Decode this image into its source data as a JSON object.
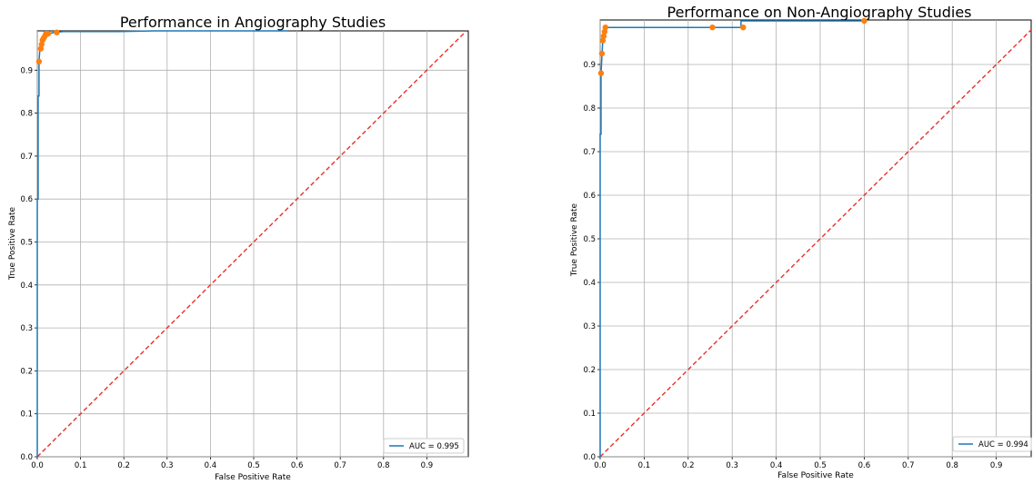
{
  "chart_data": [
    {
      "type": "line",
      "title": "Performance in Angiography Studies",
      "xlabel": "False Positive Rate",
      "ylabel": "True Positive Rate",
      "xlim": [
        0.0,
        1.0
      ],
      "ylim": [
        0.0,
        1.0
      ],
      "xticks": [
        "0.0",
        "0.1",
        "0.2",
        "0.3",
        "0.4",
        "0.5",
        "0.6",
        "0.7",
        "0.8",
        "0.9"
      ],
      "yticks": [
        "0.0",
        "0.1",
        "0.2",
        "0.3",
        "0.4",
        "0.5",
        "0.6",
        "0.7",
        "0.8",
        "0.9"
      ],
      "grid": true,
      "legend_position": "bottom-right",
      "colors": {
        "roc": "#1f77b4",
        "points": "#ff7f0e",
        "diagonal": "#e8302a"
      },
      "series": [
        {
          "name": "AUC = 0.995",
          "x": [
            0.0,
            0.0,
            0.002,
            0.002,
            0.004,
            0.004,
            0.006,
            0.008,
            0.01,
            0.012,
            0.015,
            0.02,
            0.025,
            0.04,
            0.06,
            0.19,
            0.27,
            0.58
          ],
          "y": [
            0.0,
            0.6,
            0.6,
            0.84,
            0.84,
            0.92,
            0.95,
            0.96,
            0.97,
            0.975,
            0.98,
            0.985,
            0.985,
            0.988,
            0.99,
            0.99,
            0.995,
            1.0
          ]
        }
      ],
      "threshold_points": {
        "x": [
          0.004,
          0.008,
          0.01,
          0.012,
          0.015,
          0.018,
          0.02,
          0.025,
          0.045
        ],
        "y": [
          0.92,
          0.95,
          0.96,
          0.97,
          0.975,
          0.98,
          0.985,
          0.985,
          0.988
        ]
      },
      "diagonal": {
        "x": [
          0.0,
          1.0
        ],
        "y": [
          0.0,
          1.0
        ]
      }
    },
    {
      "type": "line",
      "title": "Performance on Non-Angiography Studies",
      "xlabel": "False Positive Rate",
      "ylabel": "True Positive Rate",
      "xlim": [
        0.0,
        1.0
      ],
      "ylim": [
        0.0,
        1.0
      ],
      "xticks": [
        "0.0",
        "0.1",
        "0.2",
        "0.3",
        "0.4",
        "0.5",
        "0.6",
        "0.7",
        "0.8",
        "0.9"
      ],
      "yticks": [
        "0.0",
        "0.1",
        "0.2",
        "0.3",
        "0.4",
        "0.5",
        "0.6",
        "0.7",
        "0.8",
        "0.9"
      ],
      "grid": true,
      "legend_position": "bottom-right",
      "colors": {
        "roc": "#1f77b4",
        "points": "#ff7f0e",
        "diagonal": "#e8302a"
      },
      "series": [
        {
          "name": "AUC = 0.994",
          "x": [
            0.0,
            0.0,
            0.002,
            0.002,
            0.004,
            0.006,
            0.008,
            0.01,
            0.012,
            0.26,
            0.32,
            0.32,
            0.6
          ],
          "y": [
            0.0,
            0.74,
            0.74,
            0.88,
            0.92,
            0.955,
            0.965,
            0.975,
            0.985,
            0.985,
            0.985,
            1.0,
            1.0
          ]
        }
      ],
      "threshold_points": {
        "x": [
          0.002,
          0.004,
          0.006,
          0.008,
          0.01,
          0.012,
          0.255,
          0.325,
          0.6
        ],
        "y": [
          0.88,
          0.925,
          0.955,
          0.965,
          0.975,
          0.985,
          0.985,
          0.985,
          1.0
        ]
      },
      "diagonal": {
        "x": [
          0.0,
          1.0
        ],
        "y": [
          0.0,
          1.0
        ]
      }
    }
  ]
}
